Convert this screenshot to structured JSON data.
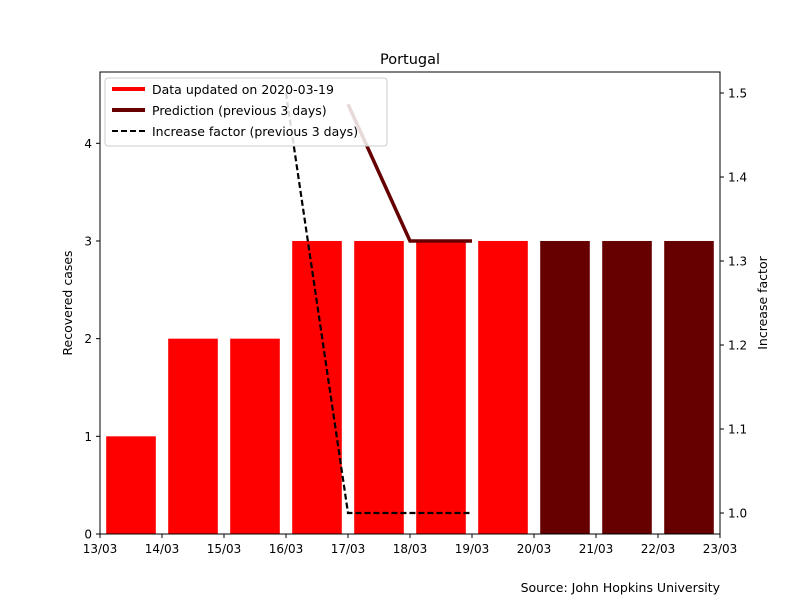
{
  "chart_data": {
    "type": "bar",
    "title": "Portugal",
    "ylabel": "Recovered cases",
    "y2label": "Increase factor",
    "source_note": "Source: John Hopkins University",
    "x_ticks": [
      "13/03",
      "14/03",
      "15/03",
      "16/03",
      "17/03",
      "18/03",
      "19/03",
      "20/03",
      "21/03",
      "22/03",
      "23/03"
    ],
    "ylim": [
      0,
      4.73
    ],
    "y_ticks": [
      0,
      1,
      2,
      3,
      4
    ],
    "y2lim": [
      0.975,
      1.525
    ],
    "y2_ticks": [
      1.0,
      1.1,
      1.2,
      1.3,
      1.4,
      1.5
    ],
    "y2_tick_labels": [
      "1.0",
      "1.1",
      "1.2",
      "1.3",
      "1.4",
      "1.5"
    ],
    "bars_actual": {
      "color": "#ff0000",
      "x": [
        0,
        1,
        2,
        3,
        4,
        5,
        6
      ],
      "values": [
        1,
        2,
        2,
        3,
        3,
        3,
        3
      ]
    },
    "bars_prediction": {
      "color": "#660000",
      "x": [
        7,
        8,
        9
      ],
      "values": [
        3,
        3,
        3
      ]
    },
    "prediction_line": {
      "color": "#660000",
      "x": [
        4,
        5,
        6
      ],
      "values": [
        4.4,
        3.0,
        3.0
      ]
    },
    "increase_factor_line": {
      "color": "#000000",
      "style": "dashed",
      "x": [
        3,
        4,
        5,
        6
      ],
      "values": [
        1.5,
        1.0,
        1.0,
        1.0
      ]
    },
    "legend": {
      "position": "top-left",
      "entries": [
        {
          "label": "Data updated on 2020-03-19",
          "color": "#ff0000",
          "style": "solid-thick"
        },
        {
          "label": "Prediction (previous 3 days)",
          "color": "#660000",
          "style": "solid-thick"
        },
        {
          "label": "Increase factor (previous 3 days)",
          "color": "#000000",
          "style": "dashed"
        }
      ]
    }
  }
}
